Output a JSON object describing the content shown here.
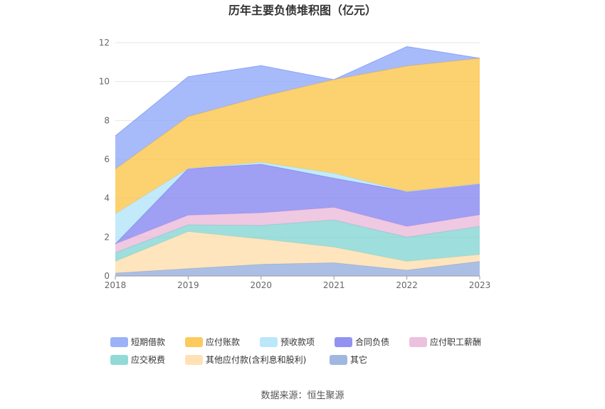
{
  "chart_data": {
    "type": "area",
    "stacked": true,
    "title": "历年主要负债堆积图（亿元）",
    "x": [
      "2018",
      "2019",
      "2020",
      "2021",
      "2022",
      "2023"
    ],
    "ylim": [
      0,
      12
    ],
    "yticks": [
      0,
      2,
      4,
      6,
      8,
      10,
      12
    ],
    "grid": true,
    "legend_position": "bottom",
    "series": [
      {
        "name": "其它",
        "color": "#8faadc",
        "values": [
          0.15,
          0.38,
          0.6,
          0.68,
          0.3,
          0.75
        ]
      },
      {
        "name": "其他应付款(含利息和股利)",
        "color": "#ffdca8",
        "values": [
          0.6,
          1.9,
          1.3,
          0.8,
          0.45,
          0.35
        ]
      },
      {
        "name": "应交税费",
        "color": "#7ed3d0",
        "values": [
          0.45,
          0.35,
          0.7,
          1.4,
          1.25,
          1.45
        ]
      },
      {
        "name": "应付职工薪酬",
        "color": "#e9b6d8",
        "values": [
          0.45,
          0.5,
          0.65,
          0.65,
          0.55,
          0.6
        ]
      },
      {
        "name": "合同负债",
        "color": "#7f7ff0",
        "values": [
          0.0,
          2.4,
          2.5,
          1.5,
          1.8,
          1.6
        ]
      },
      {
        "name": "预收款项",
        "color": "#aee3f8",
        "values": [
          1.55,
          0.0,
          0.1,
          0.25,
          0.0,
          0.0
        ]
      },
      {
        "name": "应付账款",
        "color": "#fbc240",
        "values": [
          2.3,
          2.67,
          3.37,
          4.82,
          6.45,
          6.45
        ]
      },
      {
        "name": "短期借款",
        "color": "#8aa4f8",
        "values": [
          1.7,
          2.05,
          1.6,
          0.0,
          1.0,
          0.0
        ]
      }
    ],
    "legend_order": [
      "短期借款",
      "应付账款",
      "预收款项",
      "合同负债",
      "应付职工薪酬",
      "应交税费",
      "其他应付款(含利息和股利)",
      "其它"
    ]
  },
  "source": "数据来源：恒生聚源"
}
